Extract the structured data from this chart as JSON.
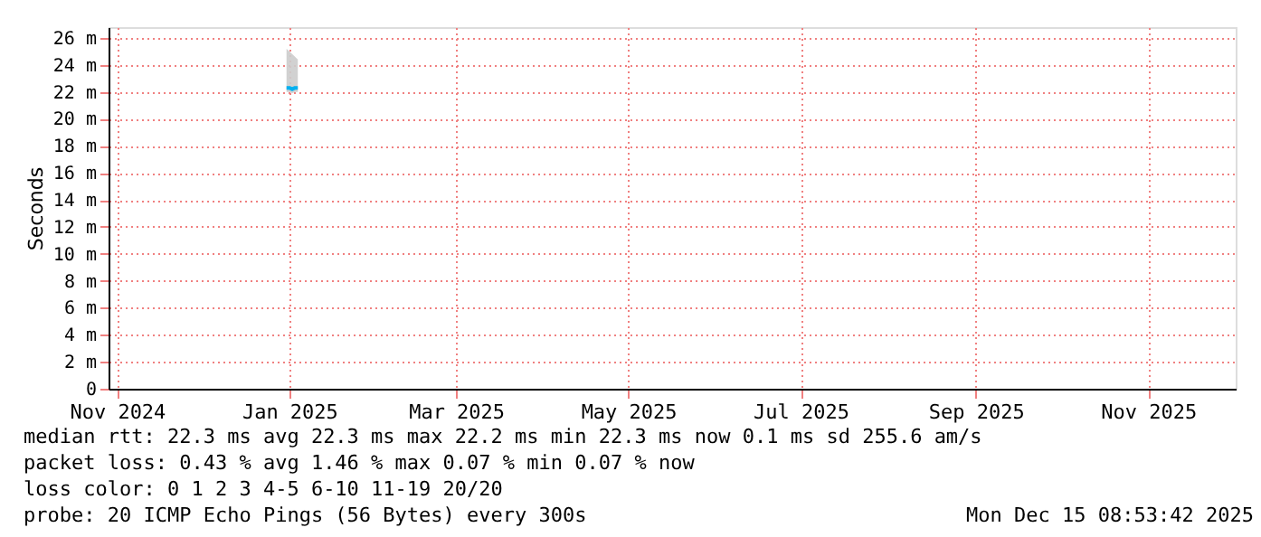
{
  "chart_data": {
    "type": "line",
    "ylabel": "Seconds",
    "x": [
      "2024-12-31",
      "2025-01-01",
      "2025-01-02",
      "2025-01-03",
      "2025-01-04"
    ],
    "series": [
      {
        "color": "#00b0f0",
        "values": [
          22.3,
          22.3,
          22.2,
          22.3,
          22.3
        ],
        "lower": [
          22.0,
          22.0,
          21.9,
          22.0,
          22.0
        ],
        "upper": [
          25.2,
          25.0,
          24.8,
          24.6,
          24.4
        ]
      }
    ],
    "xlim": [
      "2024-10-29",
      "2025-12-02"
    ],
    "xticks": [
      {
        "value": "2024-11-01",
        "label": "Nov 2024"
      },
      {
        "value": "2025-01-01",
        "label": "Jan 2025"
      },
      {
        "value": "2025-03-01",
        "label": "Mar 2025"
      },
      {
        "value": "2025-05-01",
        "label": "May 2025"
      },
      {
        "value": "2025-07-01",
        "label": "Jul 2025"
      },
      {
        "value": "2025-09-01",
        "label": "Sep 2025"
      },
      {
        "value": "2025-11-01",
        "label": "Nov 2025"
      }
    ],
    "ylim": [
      0,
      26.8
    ],
    "yticks": [
      0,
      {
        "value": 2,
        "label": "2 m"
      },
      {
        "value": 4,
        "label": "4 m"
      },
      {
        "value": 6,
        "label": "6 m"
      },
      {
        "value": 8,
        "label": "8 m"
      },
      {
        "value": 10,
        "label": "10 m"
      },
      {
        "value": 12,
        "label": "12 m"
      },
      {
        "value": 14,
        "label": "14 m"
      },
      {
        "value": 16,
        "label": "16 m"
      },
      {
        "value": 18,
        "label": "18 m"
      },
      {
        "value": 20,
        "label": "20 m"
      },
      {
        "value": 22,
        "label": "22 m"
      },
      {
        "value": 24,
        "label": "24 m"
      },
      {
        "value": 26,
        "label": "26 m"
      }
    ],
    "grid": true,
    "annotations": [
      "median rtt: 22.3 ms avg 22.3 ms max 22.2 ms min 22.3 ms now 0.1 ms sd 255.6 am/s",
      "packet loss: 0.43 % avg 1.46 % max 0.07 % min 0.07 % now",
      "loss color: 0 1 2 3 4-5 6-10 11-19 20/20",
      "probe: 20 ICMP Echo Pings (56 Bytes) every 300s",
      "Mon Dec 15 08:53:42 2025"
    ]
  }
}
